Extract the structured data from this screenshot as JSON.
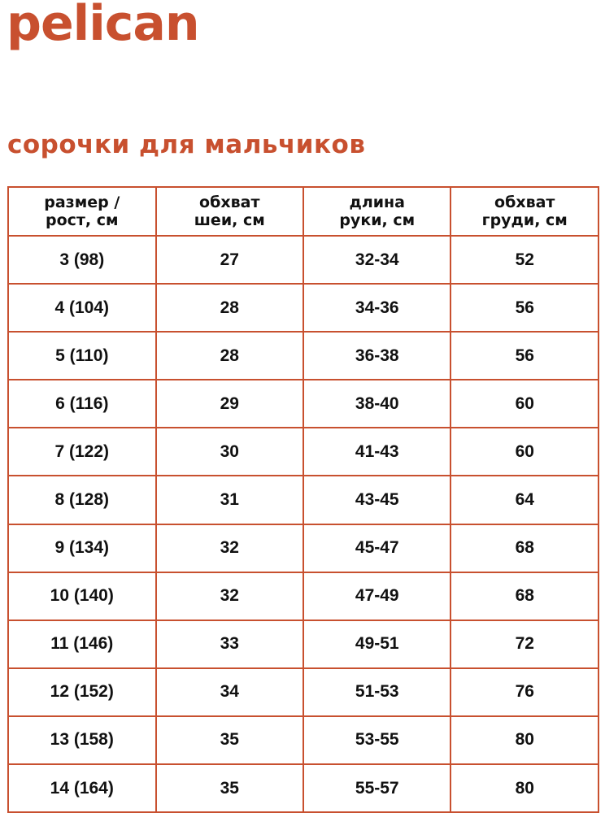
{
  "logo": "pelican",
  "title": "сорочки для мальчиков",
  "brand_color": "#c8502f",
  "headers": [
    [
      "размер /",
      "рост, см"
    ],
    [
      "обхват",
      "шеи, см"
    ],
    [
      "длина",
      "руки, см"
    ],
    [
      "обхват",
      "груди, см"
    ]
  ],
  "rows": [
    [
      "3 (98)",
      "27",
      "32-34",
      "52"
    ],
    [
      "4 (104)",
      "28",
      "34-36",
      "56"
    ],
    [
      "5 (110)",
      "28",
      "36-38",
      "56"
    ],
    [
      "6 (116)",
      "29",
      "38-40",
      "60"
    ],
    [
      "7 (122)",
      "30",
      "41-43",
      "60"
    ],
    [
      "8 (128)",
      "31",
      "43-45",
      "64"
    ],
    [
      "9 (134)",
      "32",
      "45-47",
      "68"
    ],
    [
      "10 (140)",
      "32",
      "47-49",
      "68"
    ],
    [
      "11 (146)",
      "33",
      "49-51",
      "72"
    ],
    [
      "12 (152)",
      "34",
      "51-53",
      "76"
    ],
    [
      "13 (158)",
      "35",
      "53-55",
      "80"
    ],
    [
      "14 (164)",
      "35",
      "55-57",
      "80"
    ]
  ]
}
